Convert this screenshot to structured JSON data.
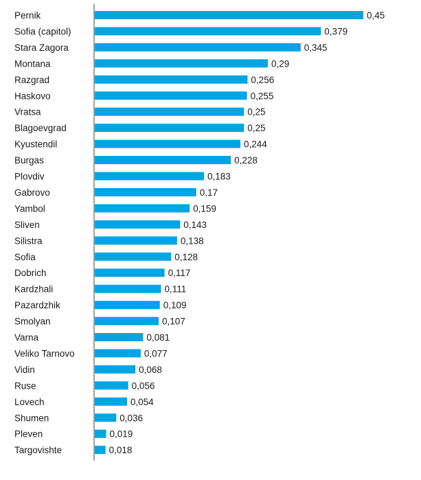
{
  "chart_data": {
    "type": "bar",
    "orientation": "horizontal",
    "categories": [
      "Pernik",
      "Sofia (capitol)",
      "Stara Zagora",
      "Montana",
      "Razgrad",
      "Haskovo",
      "Vratsa",
      "Blagoevgrad",
      "Kyustendil",
      "Burgas",
      "Plovdiv",
      "Gabrovo",
      "Yambol",
      "Sliven",
      "Silistra",
      "Sofia",
      "Dobrich",
      "Kardzhali",
      "Pazardzhik",
      "Smolyan",
      "Varna",
      "Veliko Tarnovo",
      "Vidin",
      "Ruse",
      "Lovech",
      "Shumen",
      "Pleven",
      "Targovishte"
    ],
    "values": [
      0.45,
      0.379,
      0.345,
      0.29,
      0.256,
      0.255,
      0.25,
      0.25,
      0.244,
      0.228,
      0.183,
      0.17,
      0.159,
      0.143,
      0.138,
      0.128,
      0.117,
      0.111,
      0.109,
      0.107,
      0.081,
      0.077,
      0.068,
      0.056,
      0.054,
      0.036,
      0.019,
      0.018
    ],
    "value_labels": [
      "0,45",
      "0,379",
      "0,345",
      "0,29",
      "0,256",
      "0,255",
      "0,25",
      "0,25",
      "0,244",
      "0,228",
      "0,183",
      "0,17",
      "0,159",
      "0,143",
      "0,138",
      "0,128",
      "0,117",
      "0,111",
      "0,109",
      "0,107",
      "0,081",
      "0,077",
      "0,068",
      "0,056",
      "0,054",
      "0,036",
      "0,019",
      "0,018"
    ],
    "title": "",
    "xlabel": "",
    "ylabel": "",
    "xlim": [
      0,
      0.45
    ],
    "grid": false,
    "legend": "none",
    "bar_color": "#00a5e3",
    "axis_color": "#808080"
  }
}
